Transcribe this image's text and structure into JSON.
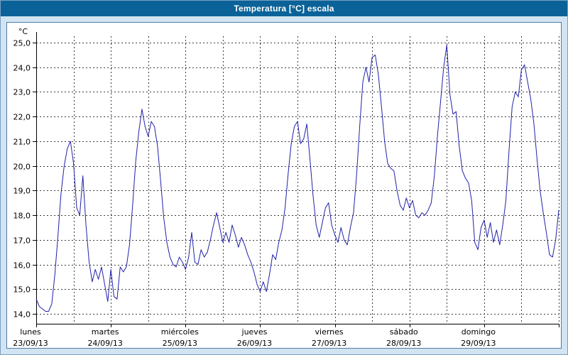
{
  "title": "Temperatura [°C] escala",
  "colors": {
    "titlebar_bg": "#0a6298",
    "titlebar_text": "#ffffff",
    "page_bg": "#d2e4f2",
    "panel_bg": "#ffffff",
    "panel_border": "#4f7ca8",
    "grid": "#3c3c3c",
    "axis": "#000000",
    "line": "#2121aa",
    "label": "#000000"
  },
  "chart_data": {
    "type": "line",
    "title": "Temperatura [°C] escala",
    "ylabel": "°C",
    "ylim": [
      14,
      25
    ],
    "y_tick_step": 1,
    "y_tick_labels": [
      "25,0",
      "24,0",
      "23,0",
      "22,0",
      "21,0",
      "20,0",
      "19,0",
      "18,0",
      "17,0",
      "16,0",
      "15,0",
      "14,0"
    ],
    "grid": {
      "horizontal": "dashed",
      "vertical_every_hours": 12
    },
    "legend": "none",
    "x_axis": {
      "sampling": "hourly",
      "days": [
        {
          "day": "lunes",
          "date": "23/09/13"
        },
        {
          "day": "martes",
          "date": "24/09/13"
        },
        {
          "day": "miércoles",
          "date": "25/09/13"
        },
        {
          "day": "jueves",
          "date": "26/09/13"
        },
        {
          "day": "viernes",
          "date": "27/09/13"
        },
        {
          "day": "sábado",
          "date": "28/09/13"
        },
        {
          "day": "domingo",
          "date": "29/09/13"
        }
      ]
    },
    "series": [
      {
        "name": "Temperatura",
        "color": "#2121aa",
        "values": [
          14.6,
          14.3,
          14.2,
          14.1,
          14.1,
          14.4,
          15.6,
          17.2,
          18.9,
          20.0,
          20.7,
          21.0,
          20.1,
          18.3,
          18.0,
          19.6,
          17.6,
          16.1,
          15.3,
          15.8,
          15.4,
          15.9,
          15.2,
          14.5,
          15.8,
          14.7,
          14.6,
          15.9,
          15.7,
          15.9,
          16.8,
          18.4,
          20.2,
          21.4,
          22.3,
          21.6,
          21.2,
          21.8,
          21.6,
          20.8,
          19.4,
          17.9,
          16.9,
          16.3,
          16.0,
          15.9,
          16.3,
          16.1,
          15.8,
          16.3,
          17.3,
          16.1,
          16.0,
          16.6,
          16.3,
          16.5,
          17.0,
          17.6,
          18.1,
          17.5,
          16.9,
          17.3,
          16.9,
          17.6,
          17.2,
          16.7,
          17.1,
          16.8,
          16.4,
          16.1,
          15.7,
          15.2,
          14.9,
          15.3,
          14.9,
          15.6,
          16.4,
          16.2,
          16.9,
          17.4,
          18.3,
          19.7,
          20.9,
          21.6,
          21.8,
          20.9,
          21.1,
          21.7,
          20.3,
          18.8,
          17.6,
          17.1,
          17.7,
          18.3,
          18.5,
          17.6,
          17.2,
          16.9,
          17.5,
          17.0,
          16.8,
          17.5,
          18.1,
          19.6,
          21.6,
          23.4,
          24.0,
          23.4,
          24.4,
          24.5,
          23.7,
          22.4,
          21.0,
          20.1,
          19.9,
          19.8,
          19.0,
          18.4,
          18.2,
          18.7,
          18.3,
          18.6,
          18.0,
          17.9,
          18.1,
          18.0,
          18.2,
          18.5,
          19.6,
          21.2,
          22.6,
          24.0,
          24.9,
          22.9,
          22.1,
          22.2,
          20.8,
          19.8,
          19.5,
          19.3,
          18.6,
          16.9,
          16.6,
          17.5,
          17.8,
          17.1,
          17.7,
          16.9,
          17.4,
          16.8,
          17.6,
          18.6,
          20.6,
          22.4,
          23.0,
          22.8,
          23.9,
          24.1,
          23.4,
          22.7,
          21.7,
          20.3,
          19.0,
          18.1,
          17.3,
          16.4,
          16.3,
          17.0,
          18.2
        ]
      }
    ]
  }
}
